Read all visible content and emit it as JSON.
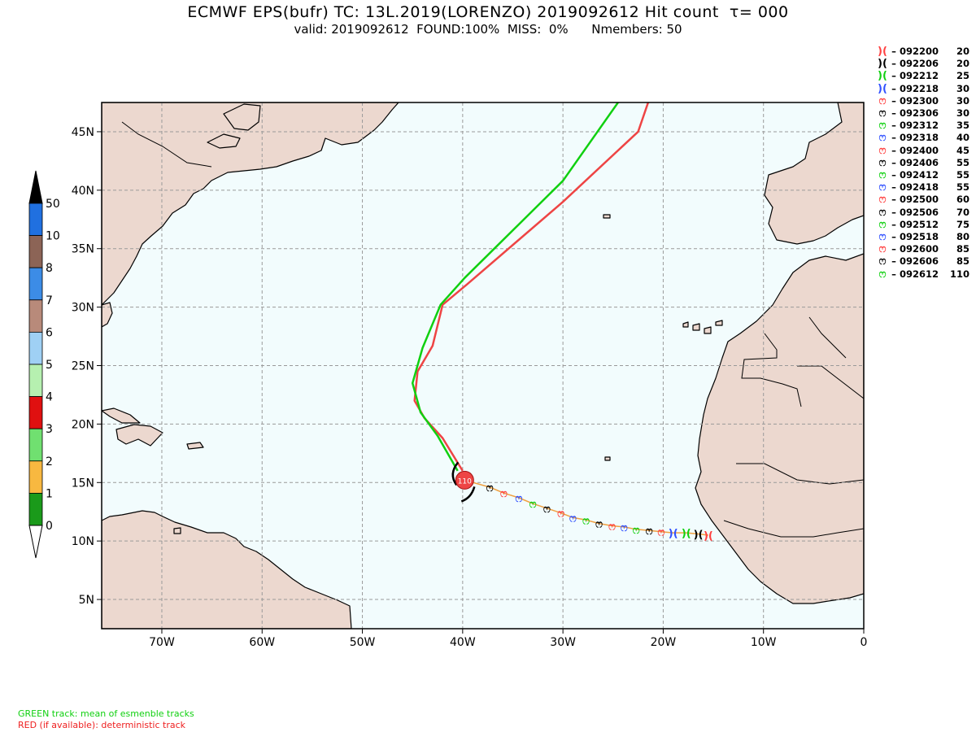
{
  "title": "ECMWF EPS(bufr) TC: 13L.2019(LORENZO) 2019092612 Hit count  τ= 000",
  "subtitle": "valid: 2019092612  FOUND:100%  MISS:  0%      Nmembers: 50",
  "axes": {
    "lon_labels": [
      "70W",
      "60W",
      "50W",
      "40W",
      "30W",
      "20W",
      "10W",
      "0"
    ],
    "lat_labels": [
      "45N",
      "40N",
      "35N",
      "30N",
      "25N",
      "20N",
      "15N",
      "10N",
      "5N"
    ]
  },
  "colorbar": {
    "labels": [
      "50",
      "10",
      "8",
      "7",
      "6",
      "5",
      "4",
      "3",
      "2",
      "1",
      "0"
    ],
    "colors": [
      "#000000",
      "#2070e0",
      "#8c6456",
      "#3c8ce6",
      "#b88a7a",
      "#9fd0f4",
      "#b6f0b0",
      "#e01010",
      "#70e070",
      "#f8b840",
      "#1a9a1a",
      "#ffffff"
    ]
  },
  "legend": {
    "items": [
      {
        "time": "092200",
        "wind": "20",
        "color": "#ff4040",
        "symbol": ")("
      },
      {
        "time": "092206",
        "wind": "20",
        "color": "#000000",
        "symbol": ")("
      },
      {
        "time": "092212",
        "wind": "25",
        "color": "#10d010",
        "symbol": ")("
      },
      {
        "time": "092218",
        "wind": "30",
        "color": "#3050ff",
        "symbol": ")("
      },
      {
        "time": "092300",
        "wind": "30",
        "color": "#ff4040",
        "symbol": "ෆ"
      },
      {
        "time": "092306",
        "wind": "30",
        "color": "#000000",
        "symbol": "ෆ"
      },
      {
        "time": "092312",
        "wind": "35",
        "color": "#10d010",
        "symbol": "ෆ"
      },
      {
        "time": "092318",
        "wind": "40",
        "color": "#3050ff",
        "symbol": "ෆ"
      },
      {
        "time": "092400",
        "wind": "45",
        "color": "#ff4040",
        "symbol": "ෆ"
      },
      {
        "time": "092406",
        "wind": "55",
        "color": "#000000",
        "symbol": "ෆ"
      },
      {
        "time": "092412",
        "wind": "55",
        "color": "#10d010",
        "symbol": "ෆ"
      },
      {
        "time": "092418",
        "wind": "55",
        "color": "#3050ff",
        "symbol": "ෆ"
      },
      {
        "time": "092500",
        "wind": "60",
        "color": "#ff4040",
        "symbol": "ෆ"
      },
      {
        "time": "092506",
        "wind": "70",
        "color": "#000000",
        "symbol": "ෆ"
      },
      {
        "time": "092512",
        "wind": "75",
        "color": "#10d010",
        "symbol": "ෆ"
      },
      {
        "time": "092518",
        "wind": "80",
        "color": "#3050ff",
        "symbol": "ෆ"
      },
      {
        "time": "092600",
        "wind": "85",
        "color": "#ff4040",
        "symbol": "ෆ"
      },
      {
        "time": "092606",
        "wind": "85",
        "color": "#000000",
        "symbol": "ෆ"
      },
      {
        "time": "092612",
        "wind": "110",
        "color": "#10d010",
        "symbol": "ෆ"
      }
    ]
  },
  "storm_label": "110",
  "tracks": {
    "mean_color": "#10d010",
    "deterministic_color": "#ee4444",
    "observed_color": "#f0a040",
    "observed": [
      {
        "lon": -15.5,
        "lat": 10.5
      },
      {
        "lon": -16.5,
        "lat": 10.6
      },
      {
        "lon": -17.7,
        "lat": 10.7
      },
      {
        "lon": -19.0,
        "lat": 10.7
      },
      {
        "lon": -20.2,
        "lat": 10.8
      },
      {
        "lon": -21.4,
        "lat": 10.9
      },
      {
        "lon": -22.7,
        "lat": 11.0
      },
      {
        "lon": -23.9,
        "lat": 11.2
      },
      {
        "lon": -25.1,
        "lat": 11.3
      },
      {
        "lon": -26.4,
        "lat": 11.5
      },
      {
        "lon": -27.7,
        "lat": 11.8
      },
      {
        "lon": -29.0,
        "lat": 12.0
      },
      {
        "lon": -30.2,
        "lat": 12.4
      },
      {
        "lon": -31.6,
        "lat": 12.8
      },
      {
        "lon": -33.0,
        "lat": 13.2
      },
      {
        "lon": -34.4,
        "lat": 13.7
      },
      {
        "lon": -35.9,
        "lat": 14.1
      },
      {
        "lon": -37.3,
        "lat": 14.6
      },
      {
        "lon": -39.8,
        "lat": 15.2
      }
    ],
    "mean": [
      {
        "lon": -40.5,
        "lat": 16.0
      },
      {
        "lon": -42.5,
        "lat": 19.0
      },
      {
        "lon": -44.2,
        "lat": 21.0
      },
      {
        "lon": -45.0,
        "lat": 23.5
      },
      {
        "lon": -44.0,
        "lat": 26.5
      },
      {
        "lon": -42.2,
        "lat": 30.2
      },
      {
        "lon": -39.8,
        "lat": 32.5
      },
      {
        "lon": -30.0,
        "lat": 40.8
      },
      {
        "lon": -24.5,
        "lat": 47.5
      }
    ],
    "deterministic": [
      {
        "lon": -40.0,
        "lat": 16.0
      },
      {
        "lon": -42.0,
        "lat": 18.8
      },
      {
        "lon": -43.8,
        "lat": 20.5
      },
      {
        "lon": -44.8,
        "lat": 22.0
      },
      {
        "lon": -44.5,
        "lat": 24.5
      },
      {
        "lon": -43.0,
        "lat": 26.7
      },
      {
        "lon": -42.0,
        "lat": 30.2
      },
      {
        "lon": -39.5,
        "lat": 32.0
      },
      {
        "lon": -30.0,
        "lat": 39.0
      },
      {
        "lon": -22.5,
        "lat": 45.0
      },
      {
        "lon": -21.5,
        "lat": 47.5
      }
    ]
  },
  "footnotes": {
    "green": "GREEN track: mean of esmenble tracks",
    "red": "RED (if available): deterministic track"
  }
}
